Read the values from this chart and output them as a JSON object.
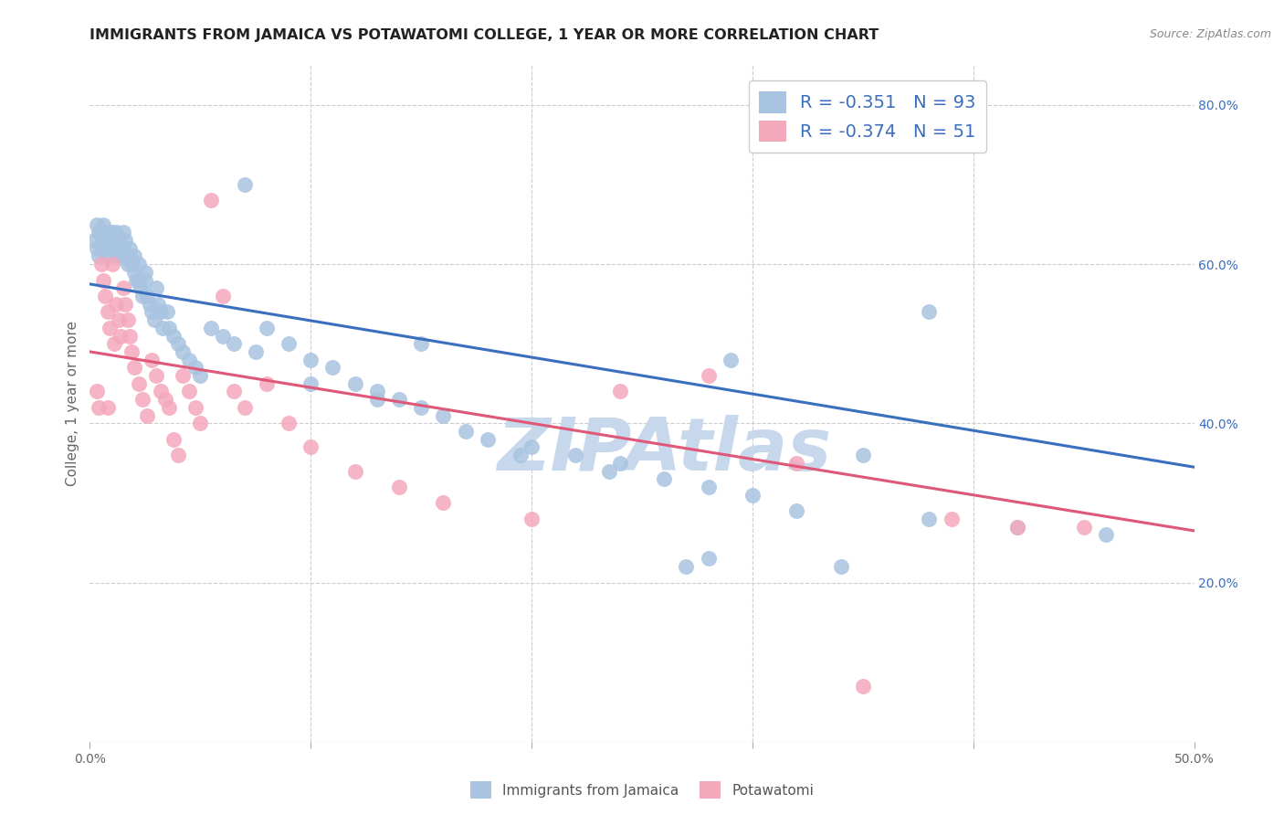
{
  "title": "IMMIGRANTS FROM JAMAICA VS POTAWATOMI COLLEGE, 1 YEAR OR MORE CORRELATION CHART",
  "source": "Source: ZipAtlas.com",
  "ylabel": "College, 1 year or more",
  "x_min": 0.0,
  "x_max": 0.5,
  "y_min": 0.0,
  "y_max": 0.85,
  "x_ticks": [
    0.0,
    0.1,
    0.2,
    0.3,
    0.4,
    0.5
  ],
  "x_tick_labels": [
    "0.0%",
    "",
    "",
    "",
    "",
    "50.0%"
  ],
  "y_ticks_right": [
    0.2,
    0.4,
    0.6,
    0.8
  ],
  "y_tick_labels_right": [
    "20.0%",
    "40.0%",
    "60.0%",
    "80.0%"
  ],
  "blue_color": "#a8c4e0",
  "pink_color": "#f4a8bc",
  "blue_line_color": "#3a6ebf",
  "pink_line_color": "#e05878",
  "legend_R1": "R = -0.351",
  "legend_N1": "N = 93",
  "legend_R2": "R = -0.374",
  "legend_N2": "N = 51",
  "watermark": "ZIPAtlas",
  "legend_label1": "Immigrants from Jamaica",
  "legend_label2": "Potawatomi",
  "blue_scatter_x": [
    0.002,
    0.003,
    0.003,
    0.004,
    0.004,
    0.005,
    0.005,
    0.006,
    0.006,
    0.007,
    0.007,
    0.008,
    0.008,
    0.009,
    0.009,
    0.01,
    0.01,
    0.011,
    0.012,
    0.012,
    0.013,
    0.013,
    0.014,
    0.015,
    0.015,
    0.016,
    0.016,
    0.017,
    0.018,
    0.018,
    0.019,
    0.02,
    0.02,
    0.021,
    0.022,
    0.022,
    0.023,
    0.024,
    0.025,
    0.025,
    0.026,
    0.027,
    0.028,
    0.029,
    0.03,
    0.031,
    0.032,
    0.033,
    0.035,
    0.036,
    0.038,
    0.04,
    0.042,
    0.045,
    0.048,
    0.05,
    0.055,
    0.06,
    0.065,
    0.07,
    0.075,
    0.08,
    0.09,
    0.1,
    0.11,
    0.12,
    0.13,
    0.14,
    0.15,
    0.16,
    0.17,
    0.18,
    0.2,
    0.22,
    0.24,
    0.26,
    0.28,
    0.3,
    0.32,
    0.35,
    0.38,
    0.38,
    0.42,
    0.46,
    0.28,
    0.29,
    0.34,
    0.1,
    0.13,
    0.15,
    0.195,
    0.235,
    0.27
  ],
  "blue_scatter_y": [
    0.63,
    0.65,
    0.62,
    0.64,
    0.61,
    0.62,
    0.64,
    0.63,
    0.65,
    0.62,
    0.64,
    0.61,
    0.64,
    0.63,
    0.62,
    0.63,
    0.64,
    0.62,
    0.61,
    0.64,
    0.62,
    0.63,
    0.61,
    0.62,
    0.64,
    0.61,
    0.63,
    0.6,
    0.62,
    0.61,
    0.6,
    0.59,
    0.61,
    0.58,
    0.6,
    0.58,
    0.57,
    0.56,
    0.58,
    0.59,
    0.56,
    0.55,
    0.54,
    0.53,
    0.57,
    0.55,
    0.54,
    0.52,
    0.54,
    0.52,
    0.51,
    0.5,
    0.49,
    0.48,
    0.47,
    0.46,
    0.52,
    0.51,
    0.5,
    0.7,
    0.49,
    0.52,
    0.5,
    0.48,
    0.47,
    0.45,
    0.44,
    0.43,
    0.42,
    0.41,
    0.39,
    0.38,
    0.37,
    0.36,
    0.35,
    0.33,
    0.32,
    0.31,
    0.29,
    0.36,
    0.28,
    0.54,
    0.27,
    0.26,
    0.23,
    0.48,
    0.22,
    0.45,
    0.43,
    0.5,
    0.36,
    0.34,
    0.22
  ],
  "pink_scatter_x": [
    0.003,
    0.004,
    0.005,
    0.006,
    0.007,
    0.008,
    0.008,
    0.009,
    0.01,
    0.011,
    0.012,
    0.013,
    0.014,
    0.015,
    0.016,
    0.017,
    0.018,
    0.019,
    0.02,
    0.022,
    0.024,
    0.026,
    0.028,
    0.03,
    0.032,
    0.034,
    0.036,
    0.038,
    0.04,
    0.042,
    0.045,
    0.048,
    0.05,
    0.055,
    0.06,
    0.065,
    0.07,
    0.08,
    0.09,
    0.1,
    0.12,
    0.14,
    0.16,
    0.2,
    0.24,
    0.28,
    0.32,
    0.39,
    0.42,
    0.45,
    0.35
  ],
  "pink_scatter_y": [
    0.44,
    0.42,
    0.6,
    0.58,
    0.56,
    0.54,
    0.42,
    0.52,
    0.6,
    0.5,
    0.55,
    0.53,
    0.51,
    0.57,
    0.55,
    0.53,
    0.51,
    0.49,
    0.47,
    0.45,
    0.43,
    0.41,
    0.48,
    0.46,
    0.44,
    0.43,
    0.42,
    0.38,
    0.36,
    0.46,
    0.44,
    0.42,
    0.4,
    0.68,
    0.56,
    0.44,
    0.42,
    0.45,
    0.4,
    0.37,
    0.34,
    0.32,
    0.3,
    0.28,
    0.44,
    0.46,
    0.35,
    0.28,
    0.27,
    0.27,
    0.07
  ],
  "blue_trend_x": [
    0.0,
    0.5
  ],
  "blue_trend_y": [
    0.575,
    0.345
  ],
  "pink_trend_x": [
    0.0,
    0.5
  ],
  "pink_trend_y": [
    0.49,
    0.265
  ],
  "background_color": "#ffffff",
  "grid_color": "#cccccc",
  "title_color": "#222222",
  "axis_label_color": "#666666",
  "right_tick_color": "#3a6ebf",
  "watermark_color": "#c8d8ec",
  "title_fontsize": 11.5,
  "axis_label_fontsize": 11,
  "tick_fontsize": 10
}
